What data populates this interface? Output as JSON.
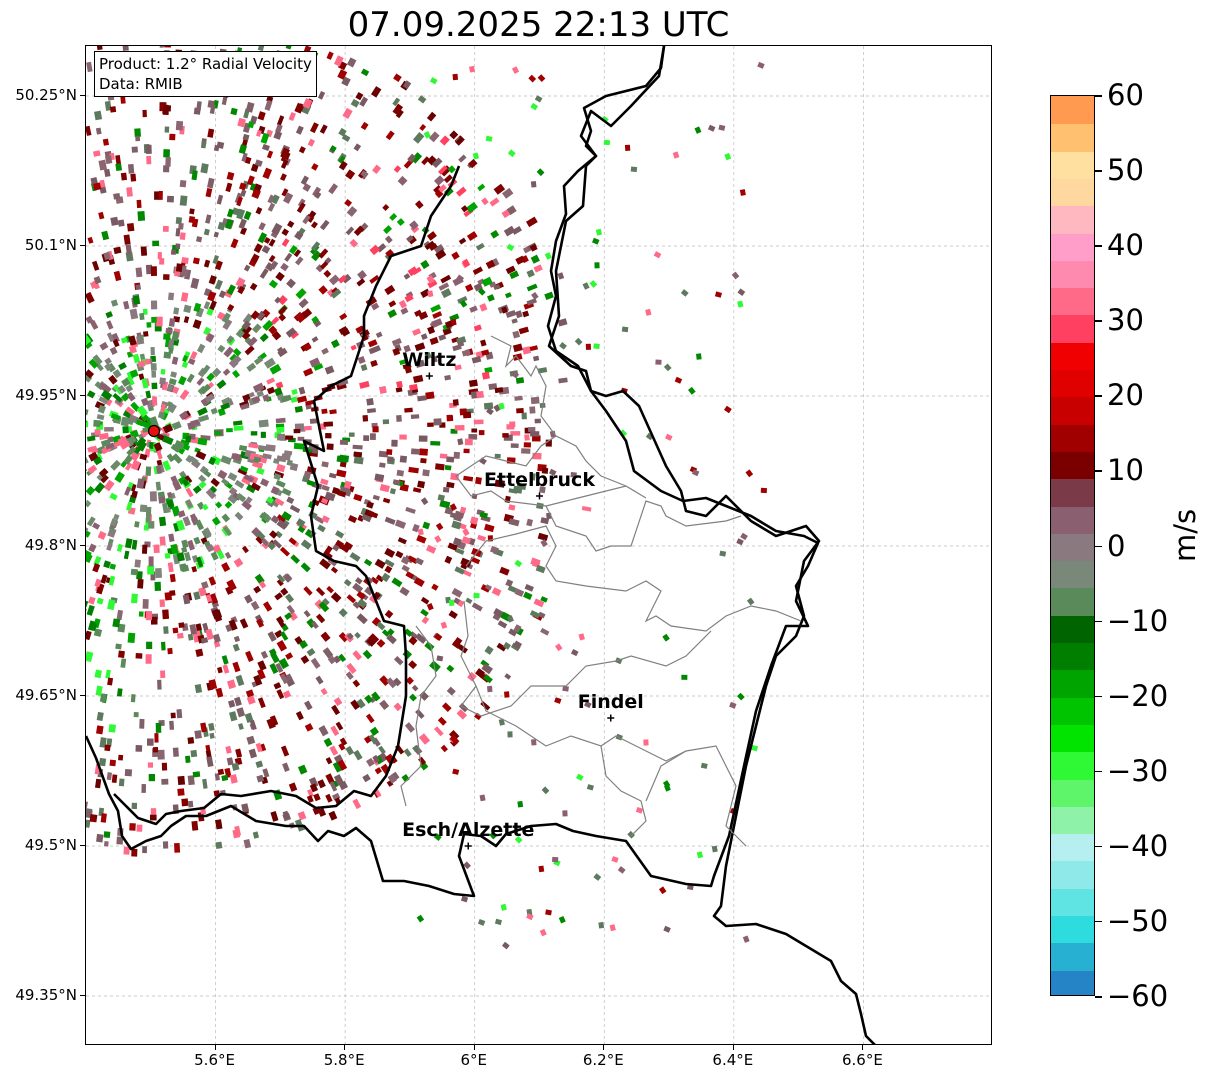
{
  "title": "07.09.2025 22:13 UTC",
  "product_box": {
    "product_line": "Product: 1.2° Radial Velocity",
    "data_line": "Data: RMIB"
  },
  "map": {
    "lon_range": [
      5.4,
      6.8
    ],
    "lat_range": [
      49.3,
      50.3
    ],
    "lat_ticks": [
      {
        "value": 50.25,
        "label": "50.25°N"
      },
      {
        "value": 50.1,
        "label": "50.1°N"
      },
      {
        "value": 49.95,
        "label": "49.95°N"
      },
      {
        "value": 49.8,
        "label": "49.8°N"
      },
      {
        "value": 49.65,
        "label": "49.65°N"
      },
      {
        "value": 49.5,
        "label": "49.5°N"
      },
      {
        "value": 49.35,
        "label": "49.35°N"
      }
    ],
    "lon_ticks": [
      {
        "value": 5.6,
        "label": "5.6°E"
      },
      {
        "value": 5.8,
        "label": "5.8°E"
      },
      {
        "value": 6.0,
        "label": "6°E"
      },
      {
        "value": 6.2,
        "label": "6.2°E"
      },
      {
        "value": 6.4,
        "label": "6.4°E"
      },
      {
        "value": 6.6,
        "label": "6.6°E"
      }
    ],
    "gridlines": true,
    "radar_site": {
      "lon": 5.505,
      "lat": 49.915,
      "color": "#e8120c"
    },
    "cities": [
      {
        "name": "Wiltz",
        "lon": 5.93,
        "lat": 49.97
      },
      {
        "name": "Ettelbruck",
        "lon": 6.1,
        "lat": 49.85
      },
      {
        "name": "Findel",
        "lon": 6.21,
        "lat": 49.628
      },
      {
        "name": "Esch/Alzette",
        "lon": 5.99,
        "lat": 49.5
      }
    ]
  },
  "colorbar": {
    "label": "m/s",
    "min": -60,
    "max": 60,
    "ticks": [
      {
        "value": 60,
        "label": "60"
      },
      {
        "value": 50,
        "label": "50"
      },
      {
        "value": 40,
        "label": "40"
      },
      {
        "value": 30,
        "label": "30"
      },
      {
        "value": 20,
        "label": "20"
      },
      {
        "value": 10,
        "label": "10"
      },
      {
        "value": 0,
        "label": "0"
      },
      {
        "value": -10,
        "label": "−10"
      },
      {
        "value": -20,
        "label": "−20"
      },
      {
        "value": -30,
        "label": "−30"
      },
      {
        "value": -40,
        "label": "−40"
      },
      {
        "value": -50,
        "label": "−50"
      },
      {
        "value": -60,
        "label": "−60"
      }
    ],
    "colors": [
      "#2484c6",
      "#27b0d2",
      "#2edcdf",
      "#5fe3e3",
      "#8fe9e9",
      "#b6efef",
      "#8ef2a8",
      "#5ff56a",
      "#2ff834",
      "#00e400",
      "#00c400",
      "#00a400",
      "#007e00",
      "#006400",
      "#5a8a5a",
      "#7a887a",
      "#8a7a80",
      "#8a6070",
      "#7a3a48",
      "#7a0000",
      "#a00000",
      "#c80000",
      "#e00000",
      "#f00000",
      "#ff4060",
      "#ff6a88",
      "#ff8ab0",
      "#ff9ec8",
      "#ffb8c0",
      "#ffd8a0",
      "#ffe0a0",
      "#ffc070",
      "#ff9a50"
    ]
  }
}
